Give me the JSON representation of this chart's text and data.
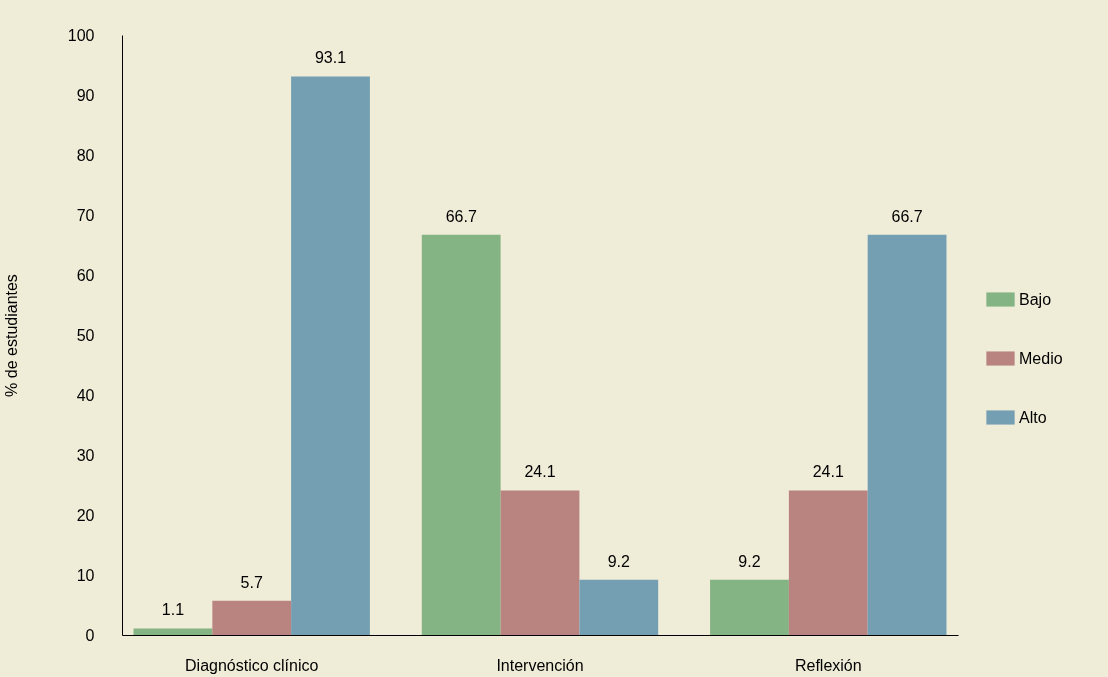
{
  "chart_data": {
    "type": "bar",
    "ylabel": "% de estudiantes",
    "categories": [
      "Diagnóstico clínico",
      "Intervención",
      "Reflexión"
    ],
    "series": [
      {
        "name": "Bajo",
        "color": "#84b384",
        "values": [
          1.1,
          66.7,
          9.2
        ]
      },
      {
        "name": "Medio",
        "color": "#b98480",
        "values": [
          5.7,
          24.1,
          24.1
        ]
      },
      {
        "name": "Alto",
        "color": "#749fb2",
        "values": [
          93.1,
          9.2,
          66.7
        ]
      }
    ],
    "ylim": [
      0,
      100
    ],
    "yticks": [
      0,
      10,
      20,
      30,
      40,
      50,
      60,
      70,
      80,
      90,
      100
    ],
    "data_labels": true,
    "legend": "right",
    "grid": false
  }
}
